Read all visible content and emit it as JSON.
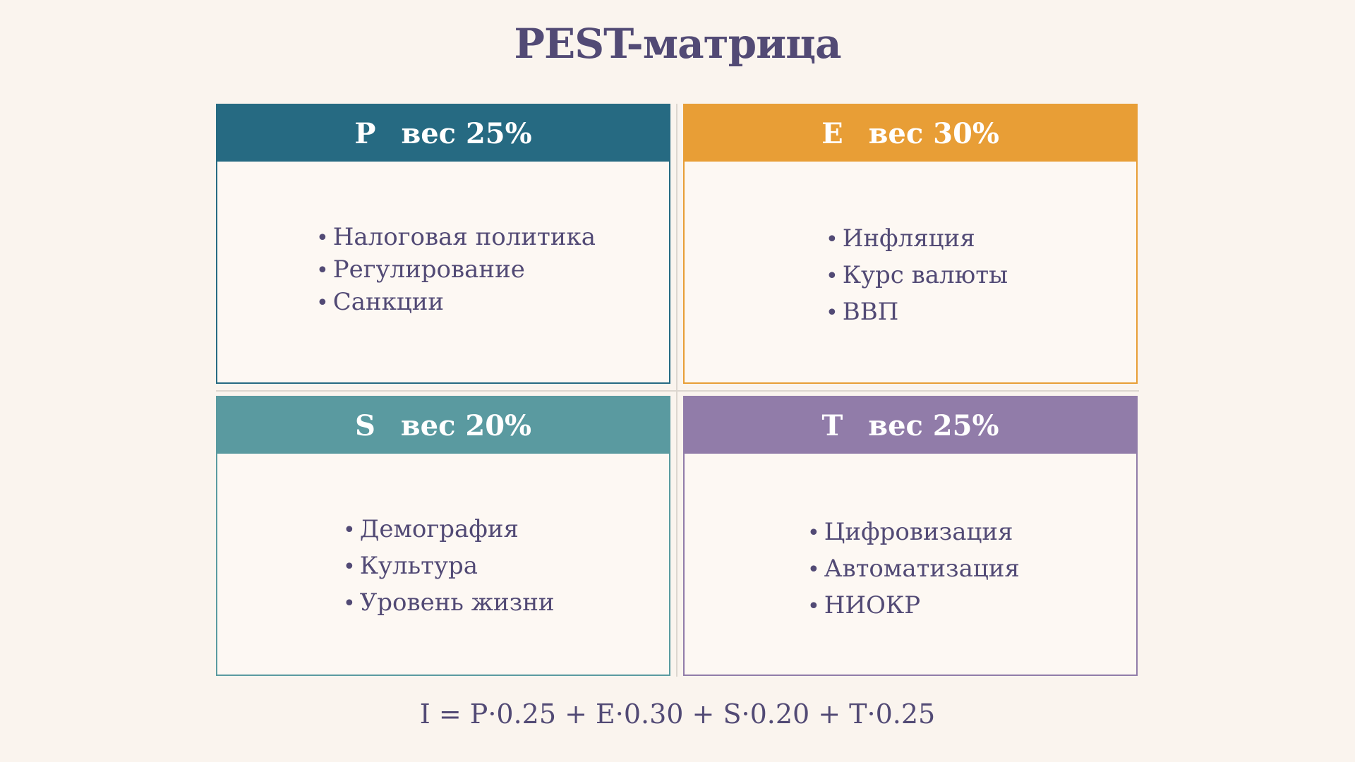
{
  "title": "PEST-матрица",
  "colors": {
    "background": "#faf4ee",
    "text": "#524a75",
    "P": "#266a82",
    "E": "#e89e36",
    "S": "#5a9aa0",
    "T": "#917ca9"
  },
  "quadrants": [
    {
      "letter": "P",
      "weight": "вес 25%",
      "items": [
        "Налоговая политика",
        "Регулирование",
        "Санкции"
      ]
    },
    {
      "letter": "E",
      "weight": "вес 30%",
      "items": [
        "Инфляция",
        "Курс валюты",
        "ВВП"
      ]
    },
    {
      "letter": "S",
      "weight": "вес 20%",
      "items": [
        "Демография",
        "Культура",
        "Уровень жизни"
      ]
    },
    {
      "letter": "T",
      "weight": "вес 25%",
      "items": [
        "Цифровизация",
        "Автоматизация",
        "НИОКР"
      ]
    }
  ],
  "bullet": "•",
  "formula": "I = P·0.25 + E·0.30 + S·0.20 + T·0.25"
}
